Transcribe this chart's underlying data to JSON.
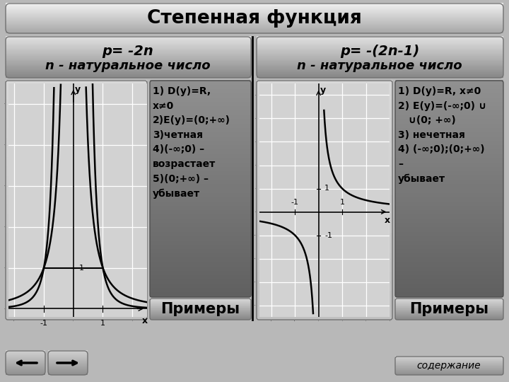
{
  "title": "Степенная функция",
  "title_fontsize": 19,
  "left_header1": "p= -2n",
  "left_header2": "n - натуральное число",
  "right_header1": "p= -(2n-1)",
  "right_header2": "n - натуральное число",
  "left_text": "1) D(y)=R,\nx≠0\n2)E(y)=(0;+∞)\n3)четная\n4)(-∞;0) –\nвозрастает\n5)(0;+∞) –\nубывает",
  "right_text": "1) D(y)=R, x≠0\n2) E(y)=(-∞;0) ∪\n   ∪(0; +∞)\n3) нечетная\n4) (-∞;0);(0;+∞)\n–\nубывает",
  "примеры_label": "Примеры",
  "содержание_label": "содержание",
  "bg_color": "#b8b8b8",
  "graph_bg": "#d0d0d0",
  "text_box_top": "#909090",
  "text_box_bot": "#606060",
  "примеры_top": "#d8d8d8",
  "примеры_bot": "#888888",
  "header_top": "#e0e0e0",
  "header_bot": "#888888",
  "title_top": "#f0f0f0",
  "title_bot": "#a8a8a8"
}
